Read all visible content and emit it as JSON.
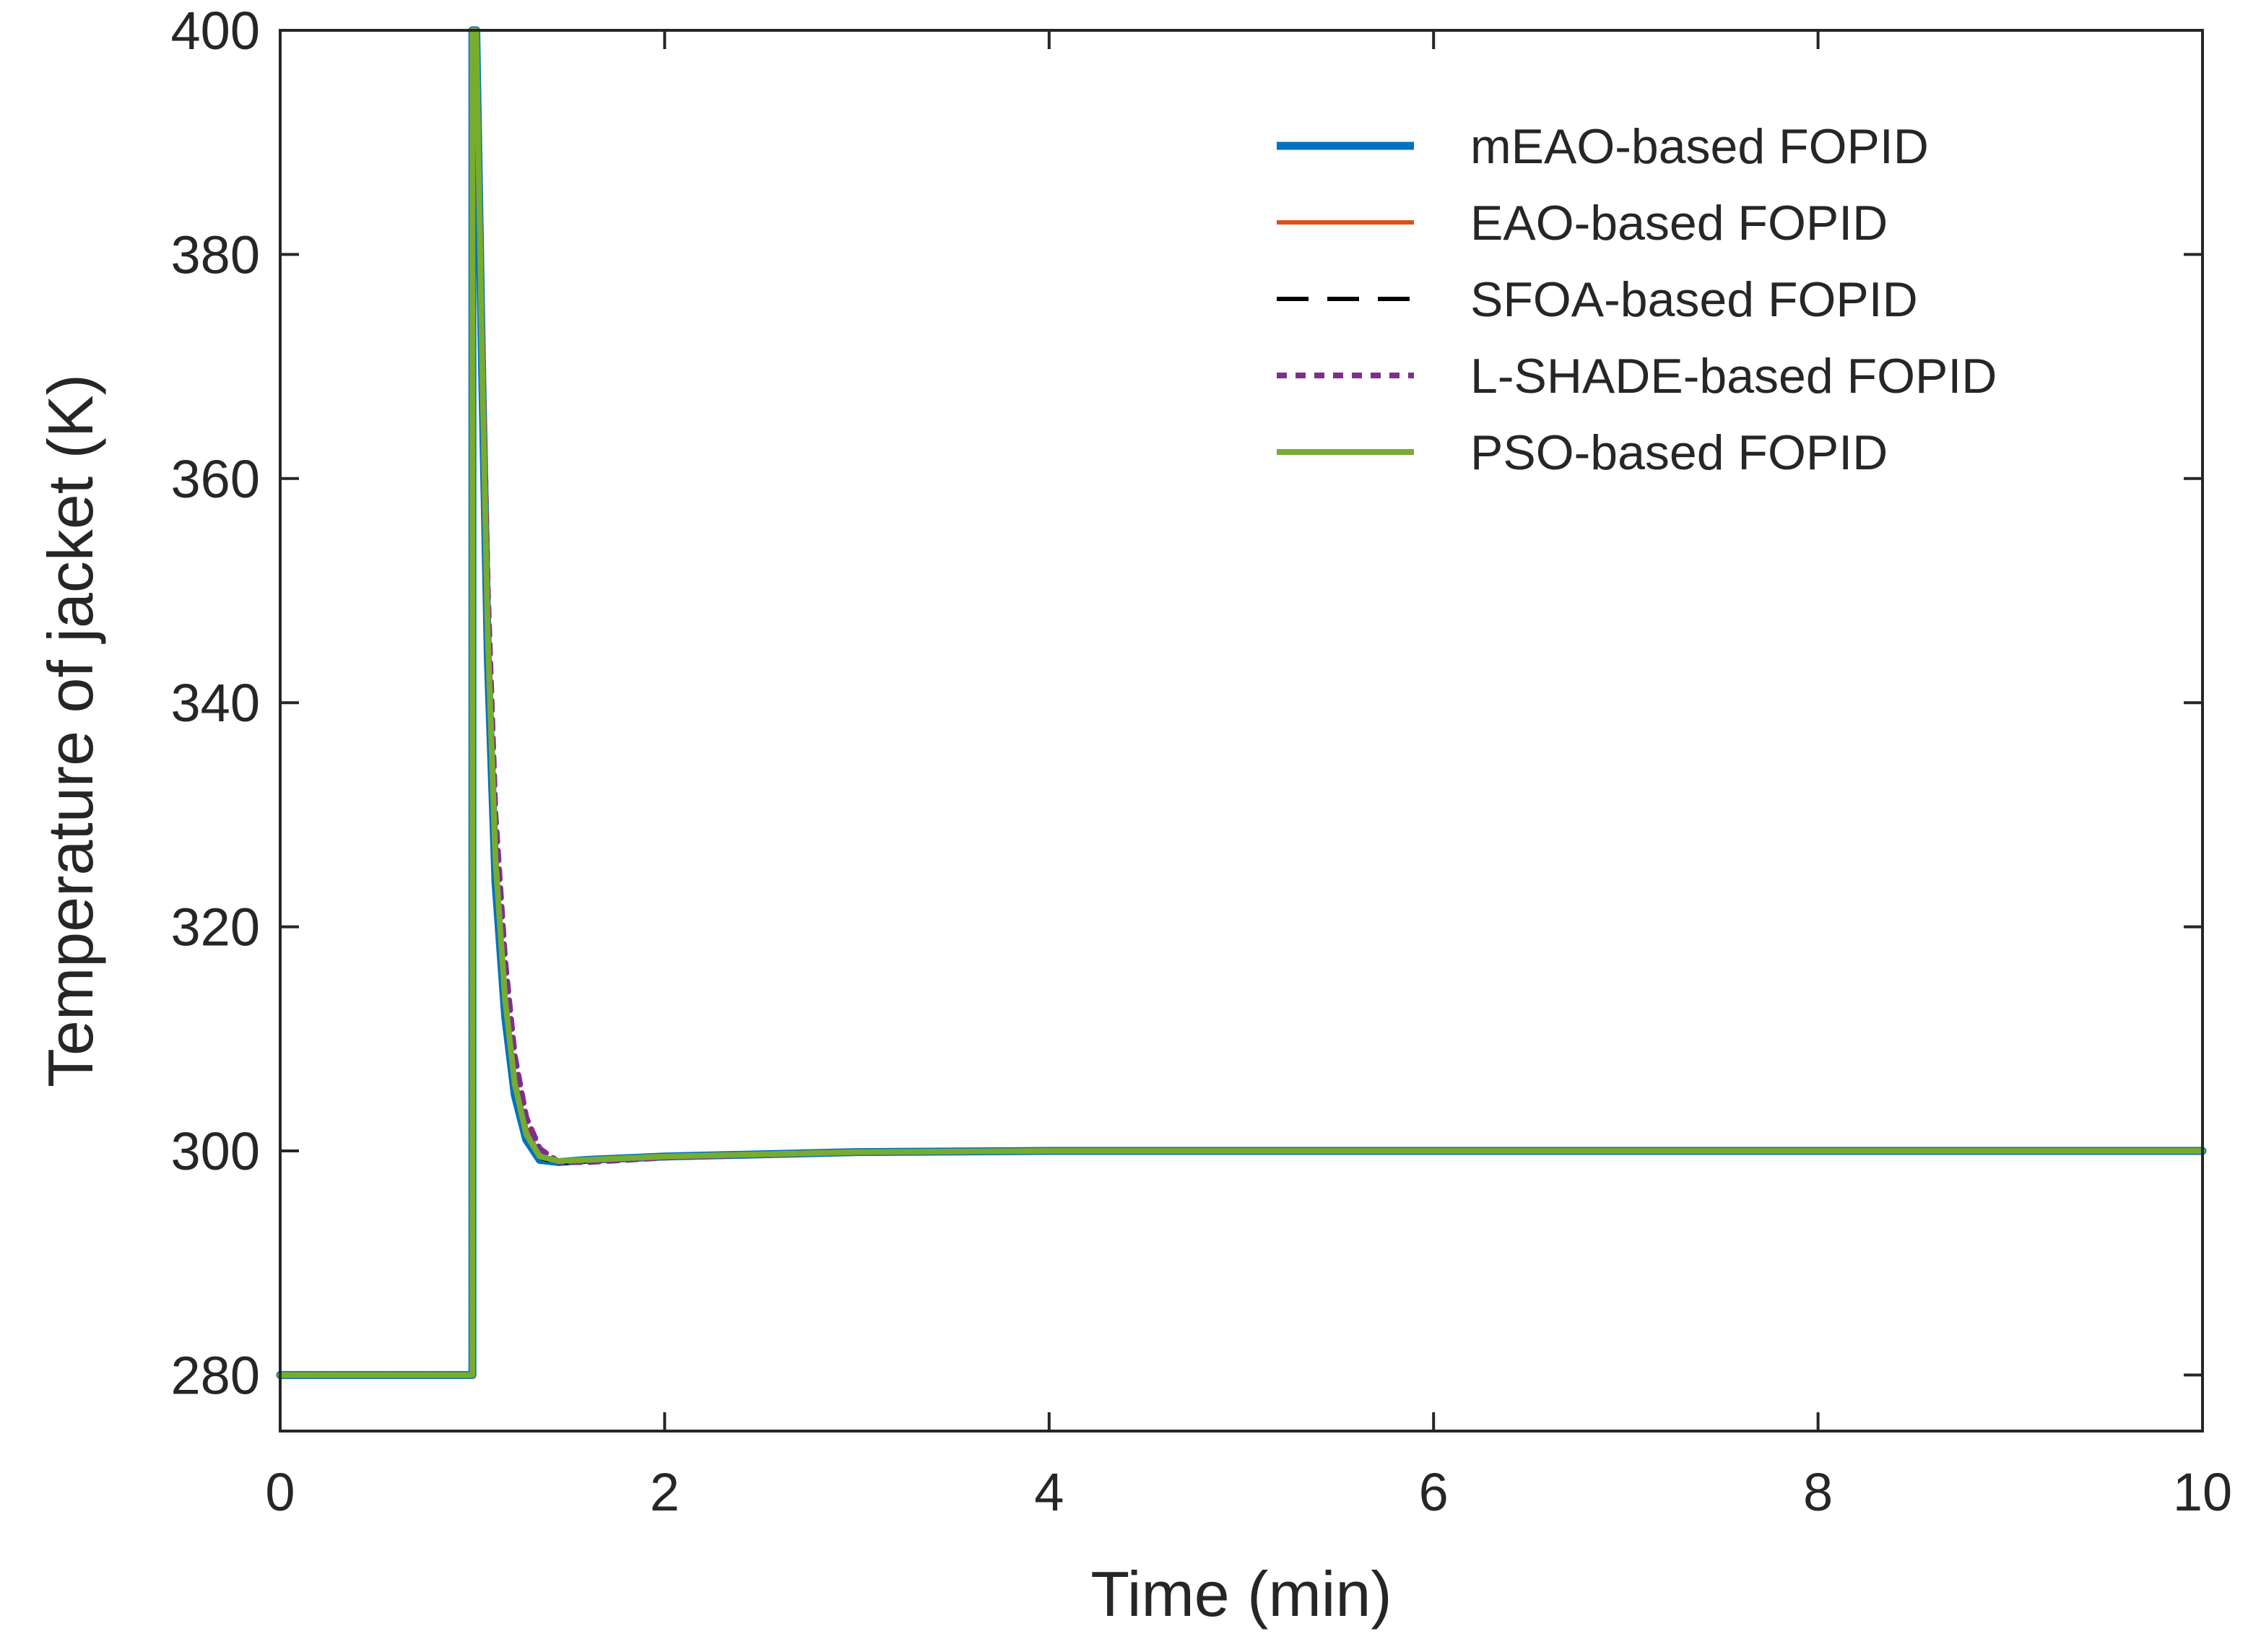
{
  "chart_data": {
    "type": "line",
    "title": "",
    "xlabel": "Time (min)",
    "ylabel": "Temperature of jacket (K)",
    "xlim": [
      0,
      10
    ],
    "ylim": [
      275,
      400
    ],
    "xticks": [
      0,
      2,
      4,
      6,
      8,
      10
    ],
    "yticks": [
      280,
      300,
      320,
      340,
      360,
      380,
      400
    ],
    "grid": false,
    "legend_position": "top-right",
    "series": [
      {
        "name": "mEAO-based FOPID",
        "color": "#0072BD",
        "style": "solid-thick",
        "x": [
          0,
          1.0,
          1.0,
          1.02,
          1.05,
          1.08,
          1.12,
          1.17,
          1.22,
          1.28,
          1.35,
          1.45,
          1.6,
          2.0,
          3.0,
          4.0,
          5.0,
          7.0,
          10.0
        ],
        "y": [
          280,
          280,
          400,
          400,
          370,
          344,
          324,
          312,
          305,
          301,
          299.2,
          299.0,
          299.2,
          299.5,
          299.9,
          300.0,
          300.0,
          300.0,
          300.0
        ]
      },
      {
        "name": "EAO-based FOPID",
        "color": "#D95319",
        "style": "solid",
        "x": [
          0,
          1.0,
          1.0,
          1.02,
          1.05,
          1.08,
          1.12,
          1.17,
          1.22,
          1.28,
          1.35,
          1.45,
          1.6,
          2.0,
          3.0,
          4.0,
          5.0,
          7.0,
          10.0
        ],
        "y": [
          280,
          280,
          398,
          398,
          372,
          347,
          327,
          314,
          306.5,
          302,
          299.6,
          299.0,
          299.1,
          299.5,
          299.9,
          300.0,
          300.0,
          300.0,
          300.0
        ]
      },
      {
        "name": "SFOA-based FOPID",
        "color": "#000000",
        "style": "dashed",
        "x": [
          0,
          1.0,
          1.0,
          1.02,
          1.05,
          1.08,
          1.12,
          1.17,
          1.22,
          1.28,
          1.35,
          1.45,
          1.6,
          2.0,
          3.0,
          4.0,
          5.0,
          7.0,
          10.0
        ],
        "y": [
          280,
          280,
          399,
          399,
          371,
          346,
          326,
          313,
          306,
          301.5,
          299.4,
          298.9,
          299.1,
          299.5,
          299.9,
          300.0,
          300.0,
          300.0,
          300.0
        ]
      },
      {
        "name": "L-SHADE-based FOPID",
        "color": "#7E2F8E",
        "style": "dotted",
        "x": [
          0,
          1.0,
          1.0,
          1.02,
          1.05,
          1.08,
          1.12,
          1.17,
          1.22,
          1.28,
          1.35,
          1.45,
          1.6,
          2.0,
          3.0,
          4.0,
          5.0,
          7.0,
          10.0
        ],
        "y": [
          280,
          280,
          396,
          396,
          373,
          350,
          330,
          317,
          308.5,
          303,
          300.2,
          299.0,
          299.0,
          299.4,
          299.9,
          300.0,
          300.0,
          300.0,
          300.0
        ]
      },
      {
        "name": "PSO-based FOPID",
        "color": "#77AC30",
        "style": "solid-medium",
        "x": [
          0,
          1.0,
          1.0,
          1.02,
          1.05,
          1.08,
          1.12,
          1.17,
          1.22,
          1.28,
          1.35,
          1.45,
          1.6,
          2.0,
          3.0,
          4.0,
          5.0,
          7.0,
          10.0
        ],
        "y": [
          280,
          280,
          400,
          400,
          371,
          346,
          326,
          313.5,
          306,
          301.5,
          299.5,
          299.1,
          299.2,
          299.5,
          299.9,
          300.0,
          300.0,
          300.0,
          300.0
        ]
      }
    ]
  }
}
